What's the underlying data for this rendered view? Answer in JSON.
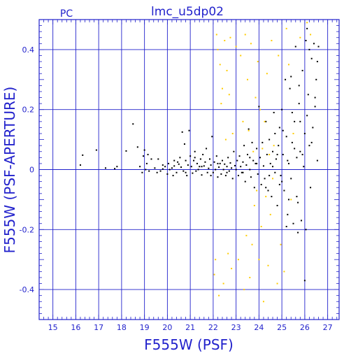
{
  "chart_data": {
    "type": "scatter",
    "title": "lmc_u5dp02",
    "corner_label": "PC",
    "xlabel": "F555W (PSF)",
    "ylabel": "F555W (PSF-APERTURE)",
    "xlim": [
      14.4,
      27.5
    ],
    "ylim": [
      -0.5,
      0.5
    ],
    "xticks": [
      15,
      16,
      17,
      18,
      19,
      20,
      21,
      22,
      23,
      24,
      25,
      26,
      27
    ],
    "yticks": [
      -0.4,
      -0.2,
      0,
      0.2,
      0.4
    ],
    "ytick_labels": [
      "-0.4",
      "-0.2",
      "0",
      "0.2",
      "0.4"
    ],
    "grid": true,
    "colors": {
      "axis": "#2222cc",
      "primary_points": "#000000",
      "secondary_points": "#ffcc00"
    },
    "series": [
      {
        "color": "#000000",
        "points": [
          [
            16.2,
            0.015
          ],
          [
            16.3,
            0.048
          ],
          [
            16.9,
            0.065
          ],
          [
            17.3,
            0.005
          ],
          [
            17.7,
            0.003
          ],
          [
            17.8,
            0.01
          ],
          [
            18.2,
            0.062
          ],
          [
            18.5,
            0.152
          ],
          [
            18.7,
            0.075
          ],
          [
            18.8,
            0.01
          ],
          [
            18.9,
            -0.01
          ],
          [
            18.95,
            0.045
          ],
          [
            19.0,
            0.065
          ],
          [
            19.05,
            0.0
          ],
          [
            19.1,
            0.02
          ],
          [
            19.15,
            0.05
          ],
          [
            19.3,
            0.035
          ],
          [
            19.45,
            0.005
          ],
          [
            19.55,
            -0.01
          ],
          [
            19.6,
            0.035
          ],
          [
            19.7,
            -0.005
          ],
          [
            19.8,
            0.002
          ],
          [
            19.9,
            0.01
          ],
          [
            20.0,
            -0.015
          ],
          [
            20.05,
            0.02
          ],
          [
            20.1,
            0.0
          ],
          [
            20.2,
            0.005
          ],
          [
            20.25,
            -0.02
          ],
          [
            20.3,
            0.012
          ],
          [
            20.4,
            -0.01
          ],
          [
            20.45,
            0.025
          ],
          [
            20.5,
            0.018
          ],
          [
            20.55,
            0.04
          ],
          [
            20.6,
            0.008
          ],
          [
            20.65,
            0.125
          ],
          [
            20.7,
            -0.005
          ],
          [
            20.75,
            0.085
          ],
          [
            20.8,
            0.03
          ],
          [
            20.85,
            -0.02
          ],
          [
            20.9,
            0.015
          ],
          [
            20.95,
            0.13
          ],
          [
            21.0,
            0.045
          ],
          [
            21.05,
            0.01
          ],
          [
            21.1,
            -0.012
          ],
          [
            21.15,
            0.03
          ],
          [
            21.2,
            0.06
          ],
          [
            21.25,
            -0.005
          ],
          [
            21.3,
            0.02
          ],
          [
            21.35,
            0.0
          ],
          [
            21.4,
            0.01
          ],
          [
            21.45,
            0.035
          ],
          [
            21.5,
            -0.018
          ],
          [
            21.55,
            0.05
          ],
          [
            21.6,
            0.012
          ],
          [
            21.65,
            0.025
          ],
          [
            21.7,
            0.07
          ],
          [
            21.75,
            -0.01
          ],
          [
            21.8,
            0.004
          ],
          [
            21.85,
            0.035
          ],
          [
            21.9,
            0.015
          ],
          [
            21.95,
            0.11
          ],
          [
            22.0,
            -0.01
          ],
          [
            22.05,
            0.025
          ],
          [
            22.1,
            0.0
          ],
          [
            22.15,
            0.045
          ],
          [
            22.2,
            -0.025
          ],
          [
            22.25,
            0.008
          ],
          [
            22.3,
            0.02
          ],
          [
            22.35,
            -0.015
          ],
          [
            22.4,
            0.03
          ],
          [
            22.45,
            0.0
          ],
          [
            22.5,
            0.018
          ],
          [
            22.55,
            -0.02
          ],
          [
            22.6,
            0.01
          ],
          [
            22.65,
            0.04
          ],
          [
            22.7,
            -0.005
          ],
          [
            22.75,
            0.022
          ],
          [
            22.8,
            0.005
          ],
          [
            22.85,
            -0.03
          ],
          [
            22.9,
            0.06
          ],
          [
            22.95,
            0.013
          ],
          [
            23.0,
            0.0
          ],
          [
            23.05,
            0.03
          ],
          [
            23.1,
            -0.02
          ],
          [
            23.15,
            0.045
          ],
          [
            23.2,
            0.01
          ],
          [
            23.25,
            -0.01
          ],
          [
            23.3,
            0.025
          ],
          [
            23.35,
            0.08
          ],
          [
            23.4,
            -0.04
          ],
          [
            23.45,
            0.015
          ],
          [
            23.5,
            0.05
          ],
          [
            23.55,
            0.135
          ],
          [
            23.6,
            0.0
          ],
          [
            23.65,
            -0.025
          ],
          [
            23.7,
            0.09
          ],
          [
            23.75,
            0.03
          ],
          [
            23.8,
            -0.06
          ],
          [
            23.85,
            0.02
          ],
          [
            23.9,
            0.07
          ],
          [
            23.95,
            -0.015
          ],
          [
            24.0,
            0.21
          ],
          [
            24.05,
            0.04
          ],
          [
            24.1,
            -0.05
          ],
          [
            24.15,
            0.09
          ],
          [
            24.2,
            0.012
          ],
          [
            24.25,
            -0.03
          ],
          [
            24.3,
            0.16
          ],
          [
            24.35,
            0.05
          ],
          [
            24.4,
            -0.07
          ],
          [
            24.45,
            0.1
          ],
          [
            24.5,
            0.02
          ],
          [
            24.55,
            -0.09
          ],
          [
            24.6,
            0.06
          ],
          [
            24.65,
            0.19
          ],
          [
            24.7,
            -0.01
          ],
          [
            24.75,
            0.035
          ],
          [
            24.8,
            -0.12
          ],
          [
            24.85,
            0.08
          ],
          [
            24.9,
            0.14
          ],
          [
            24.95,
            -0.02
          ],
          [
            25.0,
            0.2
          ],
          [
            25.05,
            0.05
          ],
          [
            25.1,
            -0.07
          ],
          [
            25.15,
            0.3
          ],
          [
            25.2,
            0.11
          ],
          [
            25.25,
            -0.15
          ],
          [
            25.3,
            0.02
          ],
          [
            25.35,
            0.27
          ],
          [
            25.4,
            -0.03
          ],
          [
            25.45,
            0.09
          ],
          [
            25.5,
            -0.18
          ],
          [
            25.55,
            0.16
          ],
          [
            25.6,
            0.41
          ],
          [
            25.65,
            0.04
          ],
          [
            25.7,
            -0.11
          ],
          [
            25.75,
            0.22
          ],
          [
            25.8,
            0.06
          ],
          [
            25.85,
            -0.17
          ],
          [
            25.9,
            0.33
          ],
          [
            25.95,
            0.01
          ],
          [
            26.0,
            0.12
          ],
          [
            26.05,
            -0.2
          ],
          [
            26.1,
            0.47
          ],
          [
            26.15,
            0.25
          ],
          [
            26.2,
            0.08
          ],
          [
            26.25,
            -0.06
          ],
          [
            26.3,
            0.37
          ],
          [
            26.35,
            0.14
          ],
          [
            26.4,
            0.42
          ],
          [
            26.45,
            0.21
          ],
          [
            26.5,
            0.3
          ],
          [
            26.55,
            0.03
          ],
          [
            26.6,
            0.41
          ],
          [
            26.0,
            -0.37
          ],
          [
            25.2,
            -0.19
          ],
          [
            25.7,
            -0.21
          ],
          [
            25.4,
            0.31
          ],
          [
            25.8,
            0.16
          ],
          [
            26.2,
            0.4
          ],
          [
            24.3,
            -0.06
          ],
          [
            24.7,
            0.12
          ],
          [
            24.9,
            -0.05
          ],
          [
            23.9,
            0.02
          ],
          [
            23.6,
            0.04
          ],
          [
            23.3,
            -0.01
          ],
          [
            22.6,
            -0.01
          ],
          [
            22.2,
            0.02
          ],
          [
            21.9,
            -0.02
          ],
          [
            21.5,
            0.01
          ],
          [
            21.2,
            0.04
          ],
          [
            20.8,
            -0.01
          ],
          [
            20.3,
            0.03
          ],
          [
            19.8,
            0.015
          ],
          [
            19.2,
            -0.005
          ],
          [
            24.45,
            -0.02
          ],
          [
            24.6,
            0.01
          ],
          [
            24.8,
            0.05
          ],
          [
            25.0,
            -0.04
          ],
          [
            25.25,
            0.03
          ],
          [
            25.55,
            0.07
          ],
          [
            25.65,
            -0.09
          ],
          [
            25.9,
            0.05
          ],
          [
            26.1,
            0.18
          ],
          [
            26.3,
            0.09
          ],
          [
            26.45,
            0.24
          ],
          [
            26.55,
            0.36
          ],
          [
            25.45,
            0.19
          ],
          [
            25.75,
            0.28
          ],
          [
            26.05,
            0.43
          ],
          [
            25.3,
            -0.1
          ],
          [
            25.05,
            0.13
          ]
        ]
      },
      {
        "color": "#ffcc00",
        "points": [
          [
            22.05,
            -0.35
          ],
          [
            22.1,
            -0.3
          ],
          [
            22.15,
            0.45
          ],
          [
            22.2,
            0.4
          ],
          [
            22.25,
            -0.42
          ],
          [
            22.3,
            0.35
          ],
          [
            22.35,
            0.22
          ],
          [
            22.4,
            0.27
          ],
          [
            22.45,
            -0.38
          ],
          [
            22.5,
            0.43
          ],
          [
            22.55,
            0.1
          ],
          [
            22.6,
            0.33
          ],
          [
            22.65,
            -0.28
          ],
          [
            22.7,
            0.25
          ],
          [
            22.75,
            0.44
          ],
          [
            22.8,
            -0.33
          ],
          [
            22.85,
            0.12
          ],
          [
            23.0,
            0.41
          ],
          [
            23.1,
            -0.3
          ],
          [
            23.2,
            0.38
          ],
          [
            23.3,
            0.16
          ],
          [
            23.35,
            -0.4
          ],
          [
            23.4,
            0.45
          ],
          [
            23.45,
            -0.22
          ],
          [
            23.5,
            0.3
          ],
          [
            23.55,
            0.13
          ],
          [
            23.6,
            -0.36
          ],
          [
            23.65,
            0.42
          ],
          [
            23.7,
            -0.25
          ],
          [
            23.75,
            0.06
          ],
          [
            23.8,
            -0.12
          ],
          [
            23.85,
            0.24
          ],
          [
            23.9,
            -0.07
          ],
          [
            23.95,
            0.36
          ],
          [
            24.0,
            -0.3
          ],
          [
            24.05,
            0.2
          ],
          [
            24.1,
            -0.19
          ],
          [
            24.15,
            0.07
          ],
          [
            24.2,
            -0.44
          ],
          [
            24.25,
            0.16
          ],
          [
            24.3,
            -0.09
          ],
          [
            24.35,
            0.32
          ],
          [
            24.4,
            -0.32
          ],
          [
            24.45,
            0.05
          ],
          [
            24.5,
            -0.15
          ],
          [
            24.55,
            0.43
          ],
          [
            24.6,
            -0.03
          ],
          [
            24.65,
            0.08
          ],
          [
            24.8,
            -0.38
          ],
          [
            24.85,
            0.38
          ],
          [
            24.95,
            -0.25
          ],
          [
            25.1,
            -0.34
          ],
          [
            25.2,
            0.47
          ],
          [
            25.3,
            0.35
          ],
          [
            25.4,
            -0.1
          ],
          [
            25.5,
            0.12
          ],
          [
            26.1,
            0.49
          ],
          [
            25.8,
            0.44
          ],
          [
            26.25,
            0.45
          ]
        ]
      }
    ]
  }
}
